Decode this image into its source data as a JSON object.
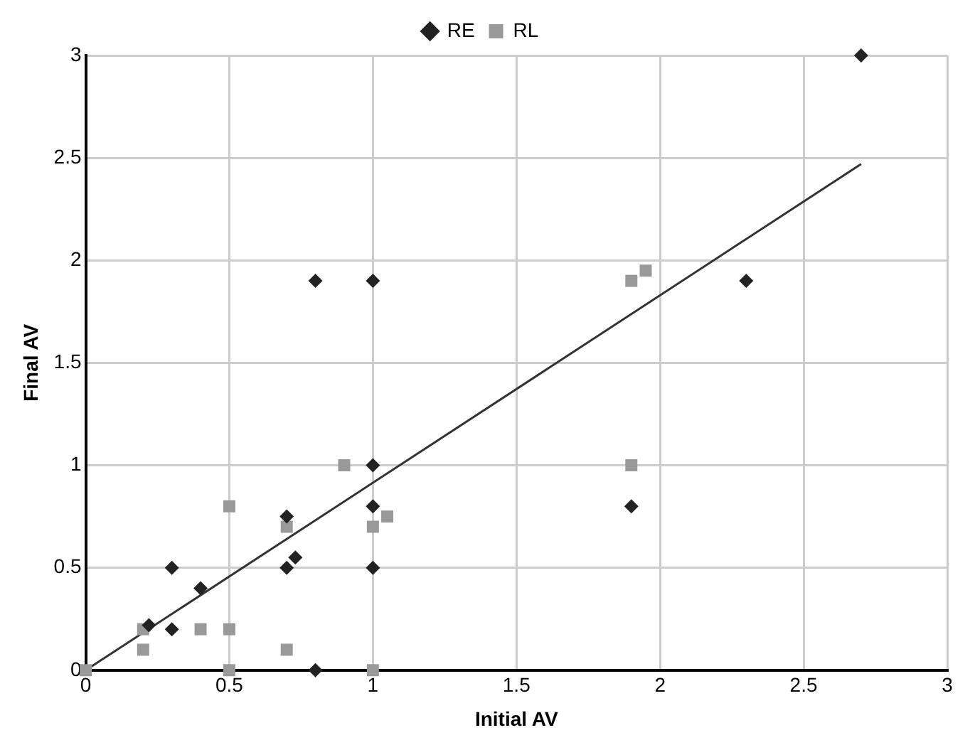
{
  "chart_data": {
    "type": "scatter",
    "xlabel": "Initial AV",
    "ylabel": "Final AV",
    "legend": "top",
    "grid": true,
    "xlim": [
      0,
      3
    ],
    "xticks": [
      0,
      0.5,
      1,
      1.5,
      2,
      2.5,
      3
    ],
    "ylim": [
      0,
      3
    ],
    "yticks": [
      0,
      0.5,
      1,
      1.5,
      2,
      2.5,
      3
    ],
    "series": [
      {
        "name": "RE",
        "color": "#222222",
        "marker": "diamond",
        "x": [
          0.22,
          0.3,
          0.3,
          0.4,
          0.7,
          0.7,
          0.73,
          0.8,
          0.8,
          1,
          1,
          1,
          1,
          1.9,
          2.3,
          2.7
        ],
        "values": [
          0.22,
          0.5,
          0.2,
          0.4,
          0.75,
          0.5,
          0.55,
          0,
          1.9,
          1.9,
          1,
          0.8,
          0.5,
          0.8,
          1.9,
          3
        ]
      },
      {
        "name": "RL",
        "color": "#999999",
        "marker": "square",
        "x": [
          0,
          0.2,
          0.2,
          0.4,
          0.5,
          0.5,
          0.5,
          0.7,
          0.7,
          0.9,
          1,
          1.05,
          1,
          1.9,
          1.95,
          1.9
        ],
        "values": [
          0,
          0.2,
          0.1,
          0.2,
          0.8,
          0.2,
          0,
          0.7,
          0.1,
          1,
          0.7,
          0.75,
          0,
          1.9,
          1.95,
          1
        ]
      },
      {
        "type": "line",
        "color": "#333333",
        "marker": "none",
        "x": [
          0,
          2.7
        ],
        "values": [
          0,
          2.47
        ]
      }
    ]
  }
}
